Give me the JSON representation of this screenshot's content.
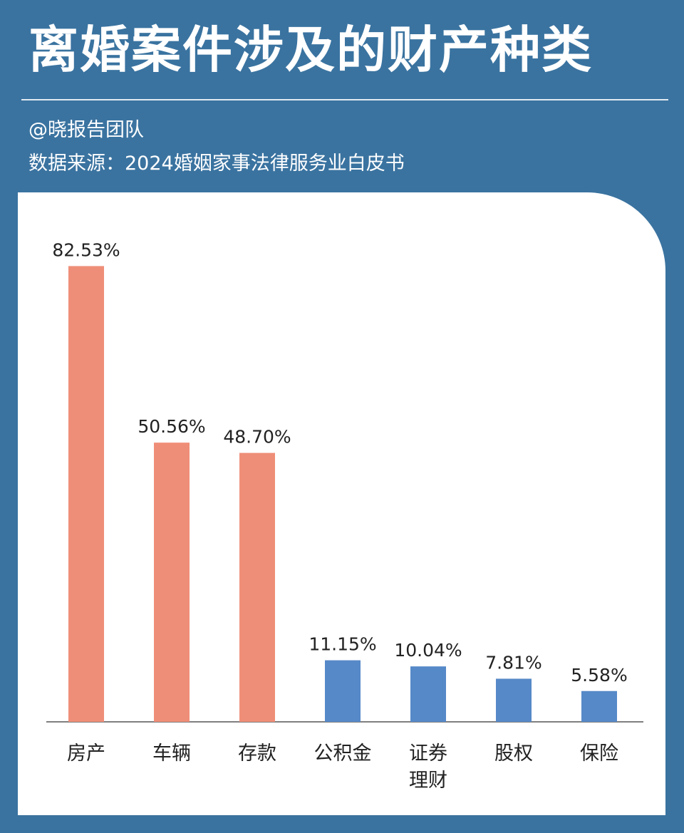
{
  "header": {
    "title": "离婚案件涉及的财产种类",
    "author": "@晓报告团队",
    "source": "数据来源：2024婚姻家事法律服务业白皮书"
  },
  "chart_data": {
    "type": "bar",
    "categories": [
      "房产",
      "车辆",
      "存款",
      "公积金",
      "证券理财",
      "股权",
      "保险"
    ],
    "category_lines": [
      [
        "房产"
      ],
      [
        "车辆"
      ],
      [
        "存款"
      ],
      [
        "公积金"
      ],
      [
        "证券",
        "理财"
      ],
      [
        "股权"
      ],
      [
        "保险"
      ]
    ],
    "values": [
      82.53,
      50.56,
      48.7,
      11.15,
      10.04,
      7.81,
      5.58
    ],
    "value_labels": [
      "82.53%",
      "50.56%",
      "48.70%",
      "11.15%",
      "10.04%",
      "7.81%",
      "5.58%"
    ],
    "bar_colors": [
      "#ef8e78",
      "#ef8e78",
      "#ef8e78",
      "#5689c8",
      "#5689c8",
      "#5689c8",
      "#5689c8"
    ],
    "ylim": [
      0,
      100
    ],
    "grid": false,
    "xlabel": "",
    "ylabel": ""
  },
  "colors": {
    "background": "#3a73a0",
    "card": "#ffffff",
    "axis": "#555555",
    "label_text": "#222222"
  }
}
